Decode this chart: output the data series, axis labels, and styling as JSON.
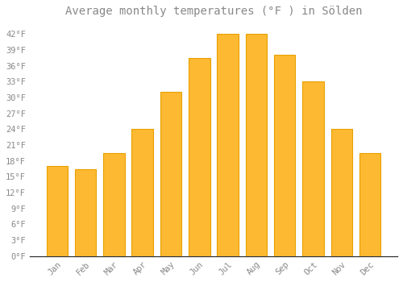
{
  "title": "Average monthly temperatures (°F ) in Sölden",
  "months": [
    "Jan",
    "Feb",
    "Mar",
    "Apr",
    "May",
    "Jun",
    "Jul",
    "Aug",
    "Sep",
    "Oct",
    "Nov",
    "Dec"
  ],
  "values": [
    17,
    16.5,
    19.5,
    24,
    31,
    37.5,
    42,
    42,
    38,
    33,
    24,
    19.5
  ],
  "bar_color": "#FDB931",
  "bar_edge_color": "#E8A000",
  "background_color": "#FFFFFF",
  "grid_color": "#FFFFFF",
  "text_color": "#888888",
  "tick_label_color": "#888888",
  "axis_line_color": "#333333",
  "ylim": [
    0,
    44
  ],
  "yticks": [
    0,
    3,
    6,
    9,
    12,
    15,
    18,
    21,
    24,
    27,
    30,
    33,
    36,
    39,
    42
  ],
  "ytick_labels": [
    "0°F",
    "3°F",
    "6°F",
    "9°F",
    "12°F",
    "15°F",
    "18°F",
    "21°F",
    "24°F",
    "27°F",
    "30°F",
    "33°F",
    "36°F",
    "39°F",
    "42°F"
  ],
  "title_fontsize": 10,
  "tick_fontsize": 7.5,
  "font_family": "monospace",
  "bar_width": 0.75
}
